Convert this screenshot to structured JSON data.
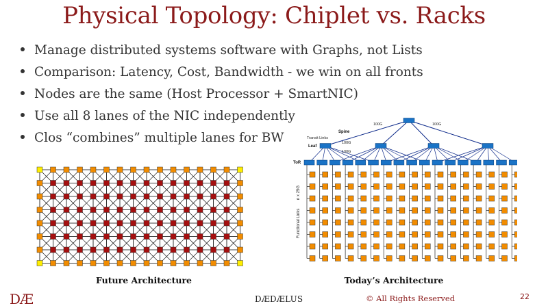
{
  "slide": {
    "title": "Physical Topology: Chiplet vs. Racks",
    "bullets": [
      "Manage distributed systems software with Graphs, not Lists",
      "Comparison: Latency, Cost, Bandwidth - we win on all fronts",
      "Nodes are the same (Host Processor + SmartNIC)",
      "Use all 8 lanes of the NIC independently",
      "Clos “combines” multiple lanes for BW"
    ]
  },
  "future_diagram": {
    "caption": "Future Architecture",
    "colors": {
      "corner": "#ffee00",
      "edge": "#f28c00",
      "inner": "#a50f0f",
      "line": "#000000"
    }
  },
  "today_diagram": {
    "caption": "Today’s Architecture",
    "labels": {
      "spine": "Spine",
      "leaf": "Leaf",
      "tor": "ToR",
      "transit_links": "Transit Links",
      "functional_links": "Functional Links",
      "n_x_25g": "n x 25G",
      "bw_100g_left": "100G",
      "bw_100g_right": "100G",
      "bw_100g_leaf1": "100G",
      "bw_100g_leaf2": "100G"
    },
    "colors": {
      "switch": "#1a73c6",
      "server": "#f28c00",
      "link": "#0d2a8a"
    }
  },
  "footer": {
    "logo": "DÆ",
    "brand": "DÆDÆLUS",
    "copyright": "©  All Rights Reserved",
    "page_number": "22"
  }
}
